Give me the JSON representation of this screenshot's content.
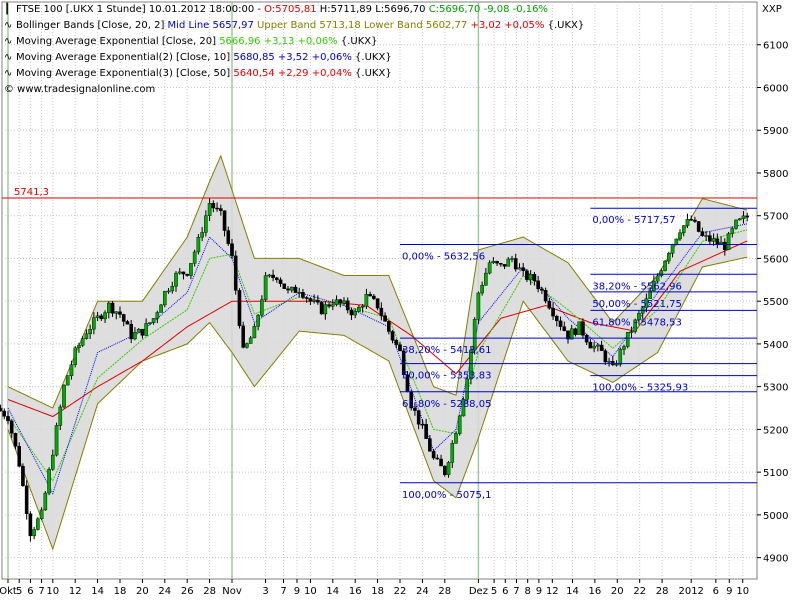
{
  "legend": {
    "row1": {
      "instrument": "FTSE 100 [.UKX  1 Stunde] 10.01.2012 18:00:00",
      "open": "O:5705,81",
      "high": "H:5711,89",
      "low": "L:5696,70",
      "close_change": "C:5696,70 -9,08 -0,16%"
    },
    "row2": {
      "name": "Bollinger Bands [Close, 20, 2]",
      "mid": "Mid Line 5657,97",
      "upper": "Upper Band 5713,18",
      "lower": "Lower Band 5602,77",
      "change": "+3,02 +0,05%",
      "symbol": "{.UKX}"
    },
    "row3": {
      "name": "Moving Average Exponential [Close, 20]",
      "value": "5666,96 +3,13 +0,06%",
      "symbol": "{.UKX}"
    },
    "row4": {
      "name": "Moving Average Exponential(2) [Close, 10]",
      "value": "5680,85 +3,52 +0,06%",
      "symbol": "{.UKX}"
    },
    "row5": {
      "name": "Moving Average Exponential(3) [Close, 50]",
      "value": "5640,54 +2,29 +0,04%",
      "symbol": "{.UKX}"
    },
    "watermark": "© www.tradesignalonline.com"
  },
  "chart_data": {
    "type": "candlestick",
    "instrument": "FTSE 100",
    "ylabel": "XXP",
    "ylim": [
      4850,
      6200
    ],
    "grid": true,
    "y_ticks": [
      4900,
      5000,
      5100,
      5200,
      5300,
      5400,
      5500,
      5600,
      5700,
      5800,
      5900,
      6000,
      6100
    ],
    "y_tick_labels": [
      "4900",
      "5000",
      "5100",
      "5200",
      "5300",
      "5400",
      "5500",
      "5600",
      "5700",
      "5800",
      "5900",
      "6000",
      "6100"
    ],
    "x_ticks": [
      {
        "label": "Okt",
        "x": 0
      },
      {
        "label": "5",
        "x": 1
      },
      {
        "label": "6",
        "x": 2
      },
      {
        "label": "7",
        "x": 3
      },
      {
        "label": "10",
        "x": 4
      },
      {
        "label": "12",
        "x": 6
      },
      {
        "label": "14",
        "x": 8
      },
      {
        "label": "18",
        "x": 10
      },
      {
        "label": "20",
        "x": 12
      },
      {
        "label": "24",
        "x": 14
      },
      {
        "label": "26",
        "x": 16
      },
      {
        "label": "28",
        "x": 18
      },
      {
        "label": "Nov",
        "x": 20
      },
      {
        "label": "3",
        "x": 23
      },
      {
        "label": "7",
        "x": 24.6
      },
      {
        "label": "9",
        "x": 25.8
      },
      {
        "label": "10",
        "x": 27
      },
      {
        "label": "14",
        "x": 29
      },
      {
        "label": "16",
        "x": 31
      },
      {
        "label": "18",
        "x": 33
      },
      {
        "label": "22",
        "x": 35
      },
      {
        "label": "24",
        "x": 37
      },
      {
        "label": "28",
        "x": 39
      },
      {
        "label": "Dez",
        "x": 42
      },
      {
        "label": "5",
        "x": 43.4
      },
      {
        "label": "6",
        "x": 44.4
      },
      {
        "label": "7",
        "x": 45.4
      },
      {
        "label": "8",
        "x": 46.4
      },
      {
        "label": "9",
        "x": 47.4
      },
      {
        "label": "12",
        "x": 48.6
      },
      {
        "label": "14",
        "x": 50.4
      },
      {
        "label": "16",
        "x": 52.4
      },
      {
        "label": "20",
        "x": 54.4
      },
      {
        "label": "22",
        "x": 56.4
      },
      {
        "label": "28",
        "x": 58.4
      },
      {
        "label": "2012",
        "x": 61
      },
      {
        "label": "6",
        "x": 63.2
      },
      {
        "label": "9",
        "x": 64.4
      },
      {
        "label": "10",
        "x": 65.6
      }
    ],
    "series": [
      {
        "name": "FTSE 100",
        "x": [
          0,
          1,
          2,
          3,
          4,
          5,
          6,
          7,
          8,
          9,
          10,
          11,
          12,
          13,
          14,
          15,
          16,
          17,
          18,
          19,
          20,
          21,
          22,
          23,
          24,
          25,
          26,
          27,
          28,
          29,
          30,
          31,
          32,
          33,
          34,
          35,
          36,
          37,
          38,
          39,
          40,
          41,
          42,
          43,
          44,
          45,
          46,
          47,
          48,
          49,
          50,
          51,
          52,
          53,
          54,
          55,
          56,
          57,
          58,
          59,
          60,
          61,
          62,
          63,
          64,
          65,
          66
        ],
        "close": [
          5230,
          5120,
          4960,
          5000,
          5150,
          5300,
          5380,
          5430,
          5460,
          5490,
          5470,
          5420,
          5430,
          5460,
          5520,
          5560,
          5570,
          5640,
          5730,
          5700,
          5600,
          5380,
          5430,
          5550,
          5560,
          5520,
          5530,
          5500,
          5480,
          5500,
          5490,
          5470,
          5510,
          5490,
          5430,
          5380,
          5260,
          5200,
          5130,
          5100,
          5200,
          5320,
          5520,
          5590,
          5580,
          5600,
          5560,
          5550,
          5510,
          5460,
          5420,
          5440,
          5400,
          5380,
          5340,
          5400,
          5450,
          5500,
          5560,
          5620,
          5670,
          5690,
          5650,
          5640,
          5630,
          5680,
          5697
        ]
      },
      {
        "name": "EMA 10",
        "x": [
          0,
          4,
          8,
          12,
          16,
          18,
          20,
          22,
          26,
          30,
          34,
          38,
          40,
          42,
          46,
          50,
          54,
          58,
          62,
          66
        ],
        "values": [
          5250,
          5050,
          5380,
          5430,
          5520,
          5650,
          5600,
          5450,
          5520,
          5490,
          5440,
          5150,
          5200,
          5450,
          5580,
          5460,
          5370,
          5520,
          5660,
          5681
        ]
      },
      {
        "name": "EMA 20",
        "x": [
          0,
          4,
          8,
          12,
          16,
          18,
          20,
          22,
          26,
          30,
          34,
          38,
          40,
          42,
          46,
          50,
          54,
          58,
          62,
          66
        ],
        "values": [
          5230,
          5080,
          5320,
          5410,
          5480,
          5600,
          5610,
          5470,
          5510,
          5490,
          5460,
          5200,
          5190,
          5380,
          5560,
          5480,
          5390,
          5480,
          5640,
          5667
        ]
      },
      {
        "name": "EMA 50",
        "x": [
          0,
          4,
          8,
          12,
          16,
          20,
          24,
          28,
          32,
          36,
          40,
          44,
          48,
          52,
          56,
          60,
          66
        ],
        "values": [
          5270,
          5230,
          5300,
          5360,
          5440,
          5500,
          5500,
          5500,
          5490,
          5420,
          5330,
          5460,
          5490,
          5450,
          5430,
          5570,
          5641
        ]
      },
      {
        "name": "Bollinger Upper",
        "x": [
          0,
          4,
          8,
          12,
          16,
          18,
          19,
          20,
          22,
          26,
          30,
          34,
          38,
          40,
          42,
          46,
          50,
          54,
          58,
          62,
          66
        ],
        "values": [
          5300,
          5250,
          5500,
          5500,
          5650,
          5780,
          5840,
          5760,
          5600,
          5600,
          5560,
          5560,
          5300,
          5280,
          5620,
          5650,
          5590,
          5450,
          5560,
          5740,
          5713
        ]
      },
      {
        "name": "Bollinger Lower",
        "x": [
          0,
          4,
          8,
          12,
          16,
          18,
          20,
          22,
          26,
          30,
          34,
          38,
          40,
          42,
          46,
          50,
          54,
          58,
          62,
          66
        ],
        "values": [
          5200,
          4920,
          5260,
          5360,
          5400,
          5450,
          5380,
          5300,
          5430,
          5420,
          5360,
          5080,
          5040,
          5180,
          5500,
          5360,
          5310,
          5380,
          5580,
          5603
        ]
      }
    ],
    "hlines": [
      {
        "value": 5741.3,
        "label": "5741,3",
        "color": "#e00000"
      }
    ],
    "fibonacci": [
      {
        "x_start": 35,
        "levels": [
          {
            "label": "0,00% - 5632,56",
            "value": 5632.56
          },
          {
            "label": "38,20% - 5413,61",
            "value": 5413.61
          },
          {
            "label": "50,00% - 5353,83",
            "value": 5353.83
          },
          {
            "label": "61,80% - 5288,05",
            "value": 5288.05
          },
          {
            "label": "100,00% - 5075,1",
            "value": 5075.1
          }
        ]
      },
      {
        "x_start": 52,
        "levels": [
          {
            "label": "0,00% - 5717,57",
            "value": 5717.57
          },
          {
            "label": "38,20% - 5562,96",
            "value": 5562.96
          },
          {
            "label": "50,00% - 5521,75",
            "value": 5521.75
          },
          {
            "label": "61,80% - 5478,53",
            "value": 5478.53
          },
          {
            "label": "100,00% - 5325,93",
            "value": 5325.93
          }
        ]
      }
    ],
    "colors": {
      "candle_up": "#00aa00",
      "candle_down": "#000000",
      "ema10": "#0000ff",
      "ema20": "#33cc00",
      "ema50": "#e00000",
      "band": "#808000",
      "band_fill": "#d8d8d8",
      "fib": "#0000cc",
      "hline": "#e00000"
    }
  }
}
